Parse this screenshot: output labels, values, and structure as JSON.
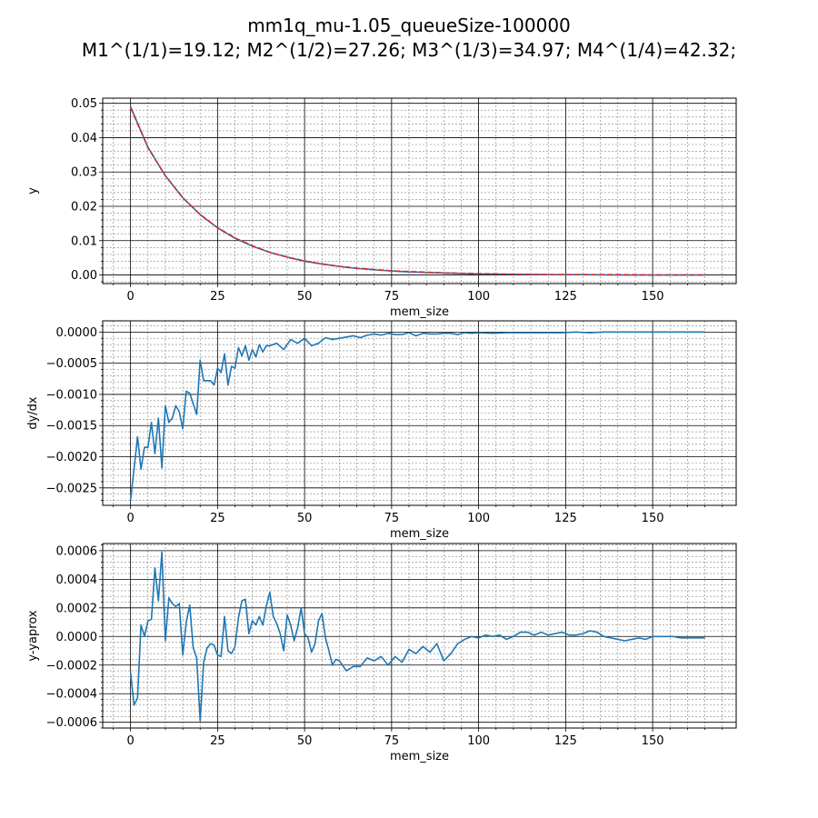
{
  "title_lines": [
    "mm1q_mu-1.05_queueSize-100000",
    "M1^(1/1)=19.12; M2^(1/2)=27.26; M3^(1/3)=34.97; M4^(1/4)=42.32;"
  ],
  "colors": {
    "series": "#1f77b4",
    "approx": "#d62728",
    "major_grid": "#000000",
    "minor_grid": "#808080"
  },
  "chart_data": [
    {
      "type": "line",
      "xlabel": "mem_size",
      "ylabel": "y",
      "xlim": [
        -8,
        174
      ],
      "ylim": [
        -0.0025,
        0.0515
      ],
      "x_ticks": [
        0,
        25,
        50,
        75,
        100,
        125,
        150
      ],
      "x_tick_labels": [
        "0",
        "25",
        "50",
        "75",
        "100",
        "125",
        "150"
      ],
      "y_ticks": [
        0.0,
        0.01,
        0.02,
        0.03,
        0.04,
        0.05
      ],
      "y_tick_labels": [
        "0.00",
        "0.01",
        "0.02",
        "0.03",
        "0.04",
        "0.05"
      ],
      "grid": true,
      "series": [
        {
          "style": "solid",
          "color": "#1f77b4",
          "x": [
            0,
            5,
            10,
            15,
            20,
            25,
            30,
            35,
            40,
            45,
            50,
            55,
            60,
            65,
            70,
            75,
            80,
            90,
            100,
            110,
            120,
            130,
            140,
            150,
            160,
            165
          ],
          "y": [
            0.049,
            0.0372,
            0.0289,
            0.0225,
            0.0176,
            0.0137,
            0.0107,
            0.0084,
            0.0066,
            0.0052,
            0.004,
            0.0032,
            0.0025,
            0.0019,
            0.0015,
            0.0012,
            0.0009,
            0.0006,
            0.0003,
            0.0002,
            0.0001,
            0.0001,
            0.0,
            0.0,
            0.0,
            0.0
          ]
        },
        {
          "style": "dashed",
          "color": "#d62728",
          "x": [
            0,
            5,
            10,
            15,
            20,
            25,
            30,
            35,
            40,
            45,
            50,
            55,
            60,
            65,
            70,
            75,
            80,
            90,
            100,
            110,
            120,
            130,
            140,
            150,
            160,
            165
          ],
          "y": [
            0.0488,
            0.0371,
            0.0289,
            0.0225,
            0.0176,
            0.0138,
            0.0108,
            0.0085,
            0.0066,
            0.0052,
            0.0041,
            0.0032,
            0.0025,
            0.002,
            0.0016,
            0.0012,
            0.001,
            0.0006,
            0.0004,
            0.0002,
            0.0001,
            0.0001,
            0.0001,
            0.0,
            0.0,
            0.0
          ]
        }
      ]
    },
    {
      "type": "line",
      "xlabel": "mem_size",
      "ylabel": "dy/dx",
      "xlim": [
        -8,
        174
      ],
      "ylim": [
        -0.00278,
        0.00018
      ],
      "x_ticks": [
        0,
        25,
        50,
        75,
        100,
        125,
        150
      ],
      "x_tick_labels": [
        "0",
        "25",
        "50",
        "75",
        "100",
        "125",
        "150"
      ],
      "y_ticks": [
        -0.0025,
        -0.002,
        -0.0015,
        -0.001,
        -0.0005,
        0.0
      ],
      "y_tick_labels": [
        "−0.0025",
        "−0.0020",
        "−0.0015",
        "−0.0010",
        "−0.0005",
        "0.0000"
      ],
      "grid": true,
      "series": [
        {
          "style": "solid",
          "color": "#1f77b4",
          "x": [
            0,
            1,
            2,
            3,
            4,
            5,
            6,
            7,
            8,
            9,
            10,
            11,
            12,
            13,
            14,
            15,
            16,
            17,
            18,
            19,
            20,
            21,
            22,
            23,
            24,
            25,
            26,
            27,
            28,
            29,
            30,
            31,
            32,
            33,
            34,
            35,
            36,
            37,
            38,
            39,
            40,
            42,
            44,
            46,
            48,
            50,
            52,
            54,
            56,
            58,
            60,
            62,
            64,
            66,
            68,
            70,
            72,
            74,
            76,
            78,
            80,
            82,
            84,
            86,
            88,
            90,
            92,
            94,
            96,
            98,
            100,
            104,
            108,
            112,
            116,
            120,
            124,
            128,
            132,
            136,
            140,
            145,
            150,
            155,
            160,
            165
          ],
          "y": [
            -0.0027,
            -0.0022,
            -0.00168,
            -0.0022,
            -0.00185,
            -0.00185,
            -0.00145,
            -0.00195,
            -0.00138,
            -0.00218,
            -0.00118,
            -0.00145,
            -0.00138,
            -0.00118,
            -0.00128,
            -0.00155,
            -0.00095,
            -0.00098,
            -0.00115,
            -0.00132,
            -0.00045,
            -0.00078,
            -0.00078,
            -0.00078,
            -0.00085,
            -0.00058,
            -0.00065,
            -0.00035,
            -0.00085,
            -0.00055,
            -0.00058,
            -0.00025,
            -0.00038,
            -0.00022,
            -0.00045,
            -0.00028,
            -0.0004,
            -0.0002,
            -0.00032,
            -0.00022,
            -0.00022,
            -0.00018,
            -0.00028,
            -0.00012,
            -0.00018,
            -0.0001,
            -0.00022,
            -0.00018,
            -9e-05,
            -0.00012,
            -0.0001,
            -8e-05,
            -6e-05,
            -9e-05,
            -5e-05,
            -3e-05,
            -5e-05,
            -2e-05,
            -4e-05,
            -4e-05,
            -1e-05,
            -6e-05,
            -2e-05,
            -3e-05,
            -3e-05,
            -2e-05,
            -2e-05,
            -4e-05,
            -1e-05,
            -2e-05,
            -1e-05,
            -2e-05,
            -1e-05,
            -1e-05,
            -1e-05,
            -1e-05,
            -1e-05,
            0.0,
            -1e-05,
            0.0,
            0.0,
            0.0,
            0.0,
            0.0,
            0.0,
            0.0
          ]
        }
      ]
    },
    {
      "type": "line",
      "xlabel": "mem_size",
      "ylabel": "y-yaprox",
      "xlim": [
        -8,
        174
      ],
      "ylim": [
        -0.00064,
        0.00065
      ],
      "x_ticks": [
        0,
        25,
        50,
        75,
        100,
        125,
        150
      ],
      "x_tick_labels": [
        "0",
        "25",
        "50",
        "75",
        "100",
        "125",
        "150"
      ],
      "y_ticks": [
        -0.0006,
        -0.0004,
        -0.0002,
        0.0,
        0.0002,
        0.0004,
        0.0006
      ],
      "y_tick_labels": [
        "−0.0006",
        "−0.0004",
        "−0.0002",
        "0.0000",
        "0.0002",
        "0.0004",
        "0.0006"
      ],
      "grid": true,
      "series": [
        {
          "style": "solid",
          "color": "#1f77b4",
          "x": [
            0,
            1,
            2,
            3,
            4,
            5,
            6,
            7,
            8,
            9,
            10,
            11,
            12,
            13,
            14,
            15,
            16,
            17,
            18,
            19,
            20,
            21,
            22,
            23,
            24,
            25,
            26,
            27,
            28,
            29,
            30,
            31,
            32,
            33,
            34,
            35,
            36,
            37,
            38,
            39,
            40,
            41,
            42,
            43,
            44,
            45,
            46,
            47,
            48,
            49,
            50,
            51,
            52,
            53,
            54,
            55,
            56,
            57,
            58,
            59,
            60,
            62,
            64,
            66,
            68,
            70,
            72,
            74,
            76,
            78,
            80,
            82,
            84,
            86,
            88,
            90,
            92,
            94,
            96,
            98,
            100,
            102,
            104,
            106,
            108,
            110,
            112,
            114,
            116,
            118,
            120,
            122,
            124,
            126,
            128,
            130,
            132,
            134,
            136,
            138,
            140,
            142,
            144,
            146,
            148,
            150,
            152,
            154,
            156,
            158,
            160,
            162,
            164,
            165
          ],
          "y": [
            -0.00025,
            -0.00048,
            -0.00043,
            8e-05,
            0.0,
            0.00011,
            0.00012,
            0.00048,
            0.00025,
            0.00059,
            -3e-05,
            0.00027,
            0.00023,
            0.00021,
            0.00023,
            -0.00013,
            0.0001,
            0.00022,
            -8e-05,
            -0.00015,
            -0.00059,
            -0.00018,
            -8e-05,
            -5e-05,
            -6e-05,
            -0.00013,
            -0.00014,
            0.00014,
            -0.0001,
            -0.00012,
            -7e-05,
            0.00013,
            0.00025,
            0.00026,
            2e-05,
            0.00011,
            8e-05,
            0.00014,
            8e-05,
            0.00021,
            0.00031,
            0.00014,
            9e-05,
            2e-05,
            -0.0001,
            0.00015,
            8e-05,
            -3e-05,
            6e-05,
            0.0002,
            2e-05,
            -1e-05,
            -0.00011,
            -5e-05,
            0.00011,
            0.00016,
            -1e-05,
            -0.0001,
            -0.0002,
            -0.00016,
            -0.00017,
            -0.00024,
            -0.00021,
            -0.00021,
            -0.00015,
            -0.00017,
            -0.00014,
            -0.0002,
            -0.00014,
            -0.00018,
            -9e-05,
            -0.00012,
            -7e-05,
            -0.00011,
            -5e-05,
            -0.00017,
            -0.00012,
            -5e-05,
            -2e-05,
            0.0,
            -1e-05,
            1e-05,
            0.0,
            1e-05,
            -2e-05,
            0.0,
            3e-05,
            3e-05,
            1e-05,
            3e-05,
            1e-05,
            2e-05,
            3e-05,
            1e-05,
            1e-05,
            2e-05,
            4e-05,
            3e-05,
            0.0,
            -1e-05,
            -2e-05,
            -3e-05,
            -2e-05,
            -1e-05,
            -2e-05,
            0.0,
            0.0,
            0.0,
            0.0,
            -1e-05,
            -1e-05,
            -1e-05,
            -1e-05,
            -1e-05
          ]
        }
      ]
    }
  ]
}
